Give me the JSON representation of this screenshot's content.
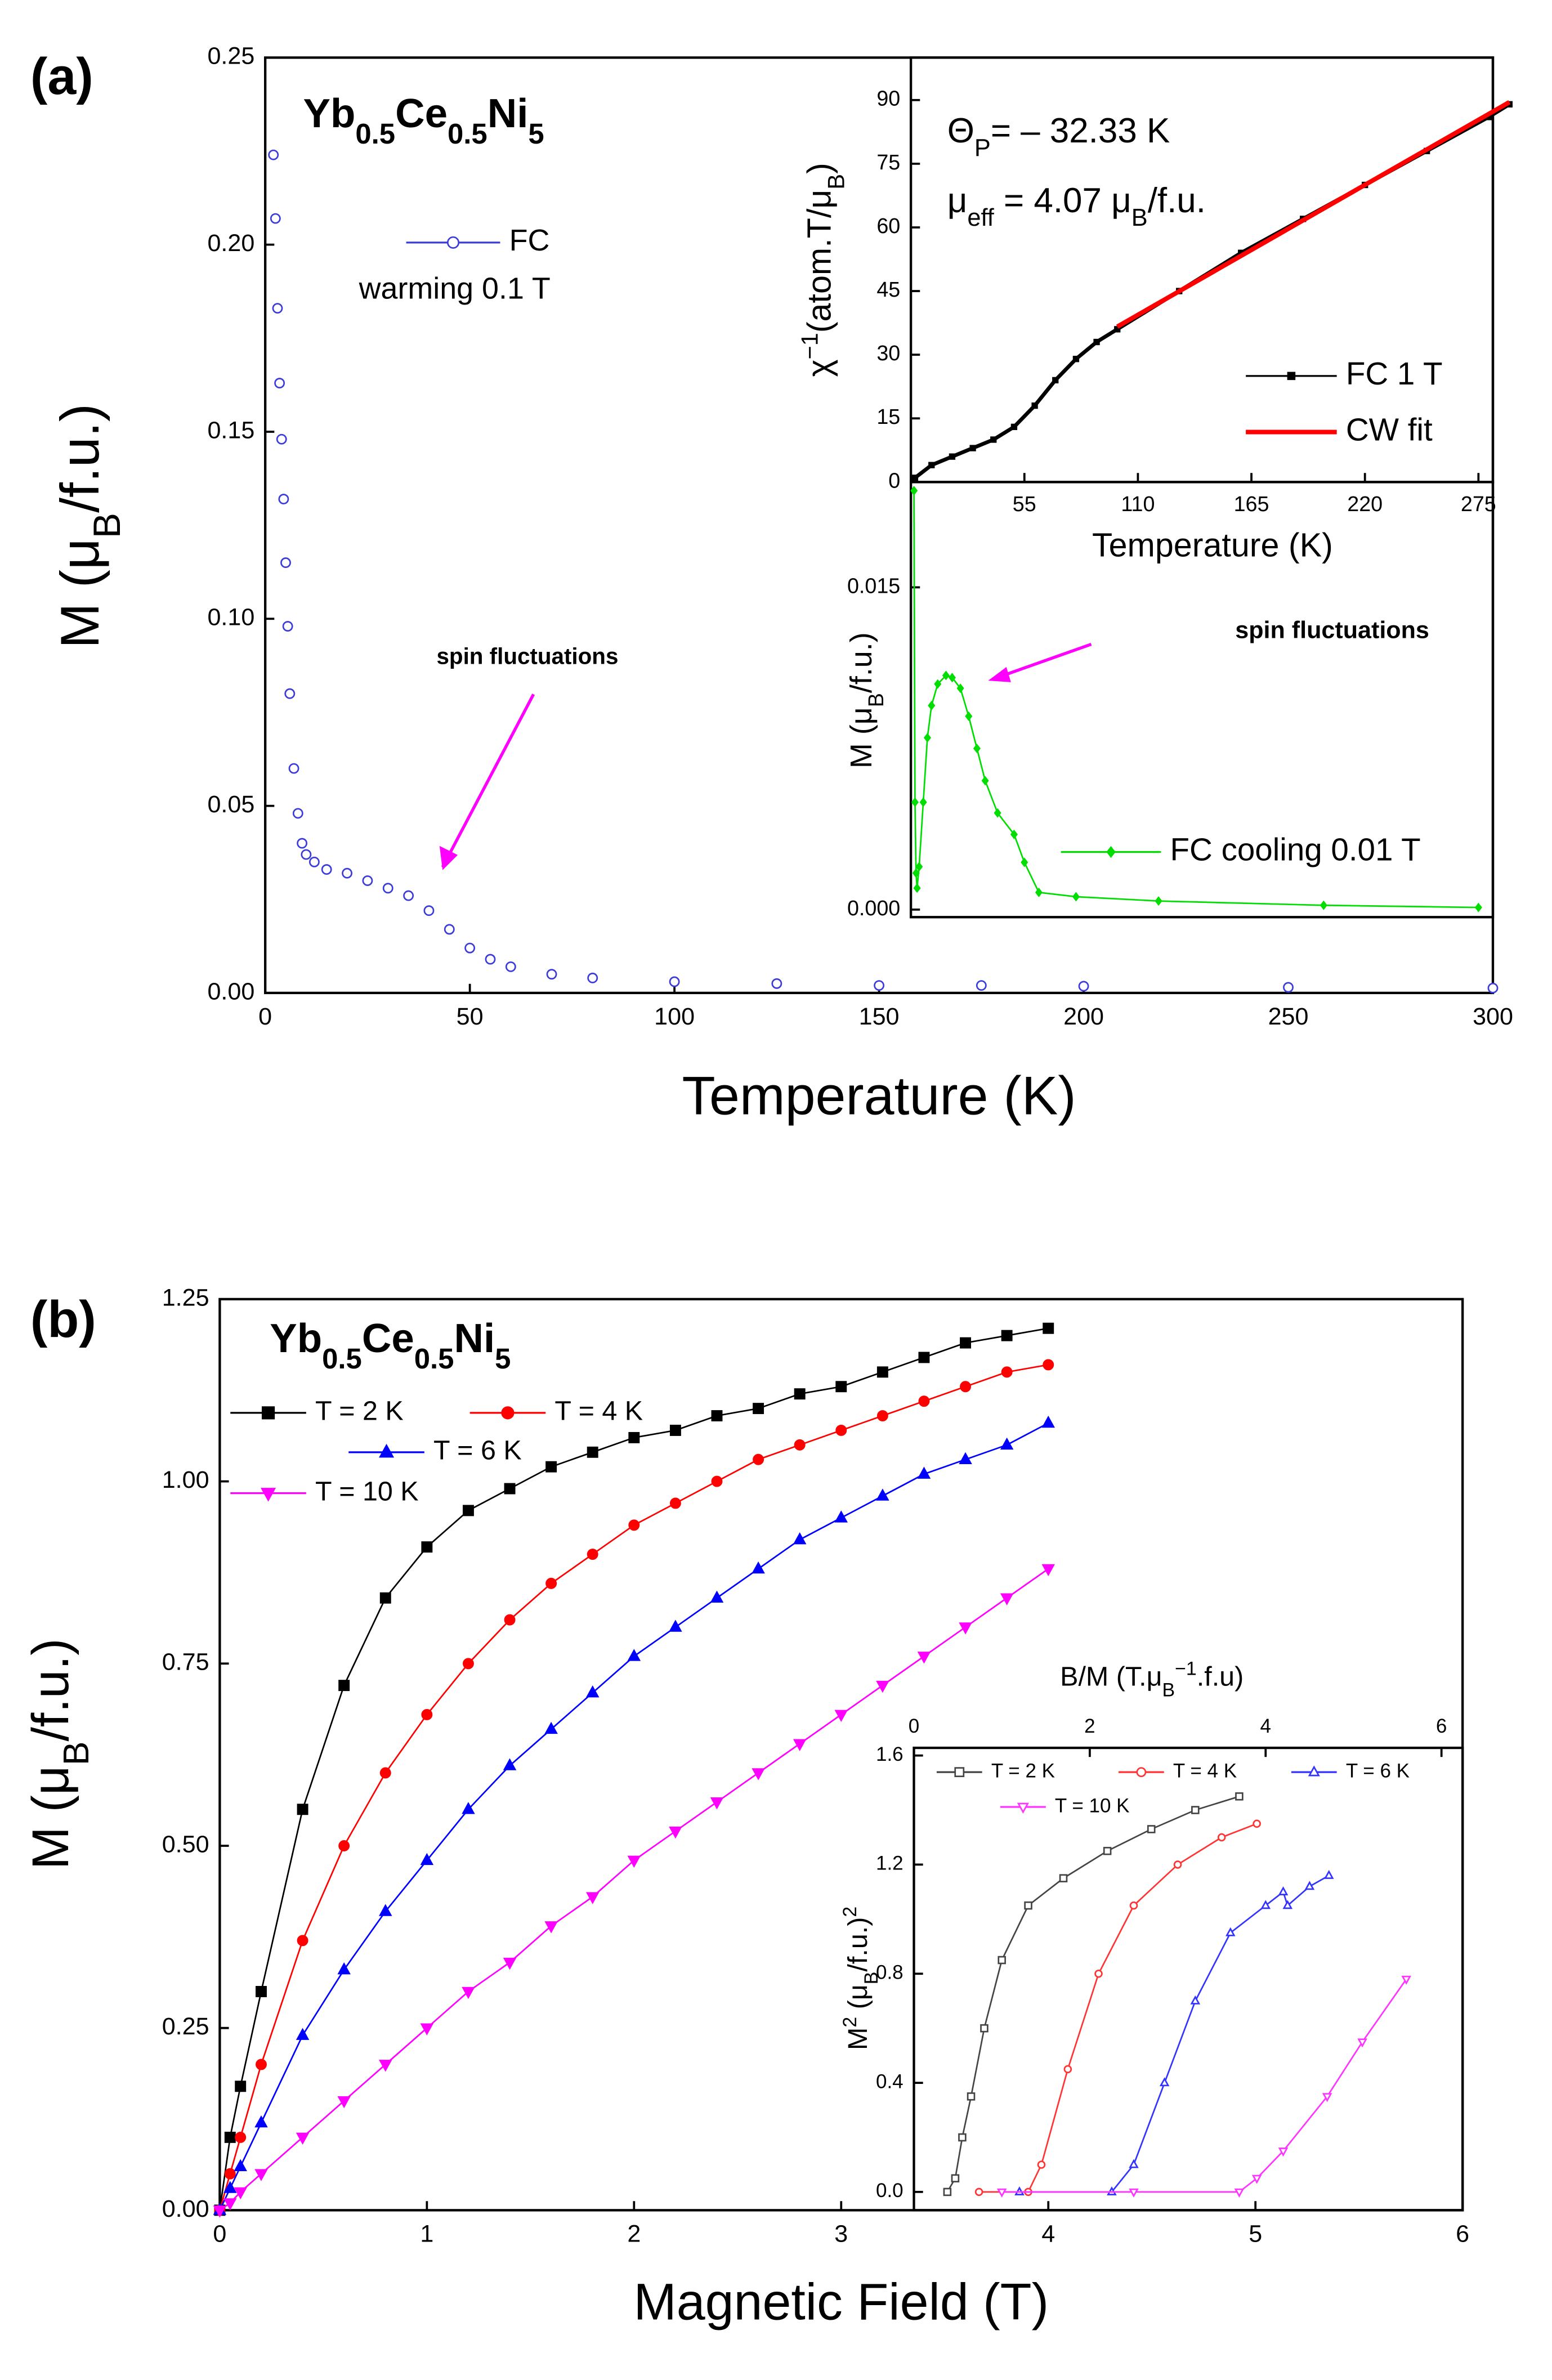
{
  "chart_data": [
    {
      "type": "scatter",
      "panel": "(a)",
      "title": [
        {
          "text": "Yb"
        },
        {
          "text": "0.5",
          "sub": true
        },
        {
          "text": "Ce"
        },
        {
          "text": "0.5",
          "sub": true
        },
        {
          "text": "Ni"
        },
        {
          "text": "5",
          "sub": true
        }
      ],
      "xlabel": [
        {
          "text": "Temperature (K)"
        }
      ],
      "ylabel": [
        {
          "text": "M (μ"
        },
        {
          "text": "B",
          "sub": true
        },
        {
          "text": "/f.u.)"
        }
      ],
      "xlim": [
        0,
        300
      ],
      "xticks": [
        0,
        50,
        100,
        150,
        200,
        250,
        300
      ],
      "ylim": [
        0,
        0.25
      ],
      "yticks": [
        {
          "value": 0,
          "label": "0.00"
        },
        {
          "value": 0.05,
          "label": "0.05"
        },
        {
          "value": 0.1,
          "label": "0.10"
        },
        {
          "value": 0.15,
          "label": "0.15"
        },
        {
          "value": 0.2,
          "label": "0.20"
        },
        {
          "value": 0.25,
          "label": "0.25"
        }
      ],
      "annotations": [
        "warming 0.1 T",
        "spin fluctuations"
      ],
      "x": [
        2,
        2.5,
        3,
        3.5,
        4,
        4.5,
        5,
        5.5,
        6,
        7,
        8,
        9,
        10,
        12,
        15,
        20,
        25,
        30,
        35,
        40,
        45,
        50,
        55,
        60,
        70,
        80,
        100,
        125,
        150,
        175,
        200,
        250,
        300
      ],
      "series": [
        {
          "name": "FC",
          "color": "#3b3bdc",
          "marker": "circle",
          "filled": false,
          "values": [
            0.224,
            0.207,
            0.183,
            0.163,
            0.148,
            0.132,
            0.115,
            0.098,
            0.08,
            0.06,
            0.048,
            0.04,
            0.037,
            0.035,
            0.033,
            0.032,
            0.03,
            0.028,
            0.026,
            0.022,
            0.017,
            0.012,
            0.009,
            0.007,
            0.005,
            0.004,
            0.003,
            0.0025,
            0.002,
            0.002,
            0.0018,
            0.0015,
            0.0013
          ]
        }
      ]
    },
    {
      "type": "line",
      "title": [
        {
          "text": "Θ"
        },
        {
          "text": "P",
          "sub": true
        },
        {
          "text": "= – 32.33 K"
        }
      ],
      "subtitle": [
        {
          "text": "μ"
        },
        {
          "text": "eff",
          "sub": true
        },
        {
          "text": " = 4.07 μ"
        },
        {
          "text": "B",
          "sub": true
        },
        {
          "text": "/f.u."
        }
      ],
      "xlabel": [
        {
          "text": "Temperature (K)"
        }
      ],
      "ylabel": [
        {
          "text": "χ"
        },
        {
          "text": "−1",
          "sup": true
        },
        {
          "text": "(atom.T/μ"
        },
        {
          "text": "B",
          "sub": true
        },
        {
          "text": ")"
        }
      ],
      "xlim": [
        0,
        282
      ],
      "xticks": [
        55,
        110,
        165,
        220,
        275
      ],
      "ylim": [
        0,
        100
      ],
      "yticks": [
        0,
        15,
        30,
        45,
        60,
        75,
        90
      ],
      "series": [
        {
          "name": "FC 1 T",
          "color": "#000000",
          "marker": "square",
          "filled": true,
          "x": [
            2,
            10,
            20,
            30,
            40,
            50,
            60,
            70,
            80,
            90,
            100,
            130,
            160,
            190,
            220,
            250,
            280,
            290
          ],
          "values": [
            1,
            4,
            6,
            8,
            10,
            13,
            18,
            24,
            29,
            33,
            36,
            45,
            54,
            62,
            70,
            78,
            86,
            89
          ]
        },
        {
          "name": "CW fit",
          "color": "#ff0000",
          "x": [
            100,
            290
          ],
          "values": [
            36.6,
            89.5
          ]
        }
      ]
    },
    {
      "type": "line",
      "ylabel": [
        {
          "text": "M (μ"
        },
        {
          "text": "B",
          "sub": true
        },
        {
          "text": "/f.u.)"
        }
      ],
      "xlim": [
        0,
        282
      ],
      "ylim": [
        -0.00035,
        0.0199
      ],
      "yticks": [
        {
          "value": 0,
          "label": "0.000"
        },
        {
          "value": 0.015,
          "label": "0.015"
        }
      ],
      "annotations": [
        "spin fluctuations"
      ],
      "series": [
        {
          "name": "FC cooling 0.01 T",
          "color": "#00dd00",
          "marker": "diamond",
          "filled": true,
          "x": [
            1.5,
            2,
            2.5,
            3,
            4,
            6,
            8,
            10,
            13,
            17,
            20,
            24,
            28,
            32,
            36,
            42,
            50,
            55,
            62,
            80,
            120,
            200,
            275
          ],
          "values": [
            0.0195,
            0.005,
            0.0017,
            0.001,
            0.002,
            0.005,
            0.008,
            0.0095,
            0.0105,
            0.0109,
            0.0108,
            0.0103,
            0.009,
            0.0075,
            0.006,
            0.0045,
            0.0035,
            0.0022,
            0.0008,
            0.0006,
            0.0004,
            0.0002,
            0.0001
          ]
        }
      ]
    },
    {
      "type": "line",
      "panel": "(b)",
      "title": [
        {
          "text": "Yb"
        },
        {
          "text": "0.5",
          "sub": true
        },
        {
          "text": "Ce"
        },
        {
          "text": "0.5",
          "sub": true
        },
        {
          "text": "Ni"
        },
        {
          "text": "5",
          "sub": true
        }
      ],
      "xlabel": [
        {
          "text": "Magnetic Field (T)"
        }
      ],
      "ylabel": [
        {
          "text": "M (μ"
        },
        {
          "text": "B",
          "sub": true
        },
        {
          "text": "/f.u.)"
        }
      ],
      "xlim": [
        0,
        6
      ],
      "xticks": [
        0,
        1,
        2,
        3,
        4,
        5,
        6
      ],
      "ylim": [
        0,
        1.25
      ],
      "yticks": [
        {
          "value": 0,
          "label": "0.00"
        },
        {
          "value": 0.25,
          "label": "0.25"
        },
        {
          "value": 0.5,
          "label": "0.50"
        },
        {
          "value": 0.75,
          "label": "0.75"
        },
        {
          "value": 1,
          "label": "1.00"
        },
        {
          "value": 1.25,
          "label": "1.25"
        }
      ],
      "x": [
        0,
        0.05,
        0.1,
        0.2,
        0.4,
        0.6,
        0.8,
        1.0,
        1.2,
        1.4,
        1.6,
        1.8,
        2.0,
        2.2,
        2.4,
        2.6,
        2.8,
        3.0,
        3.2,
        3.4,
        3.6,
        3.8,
        4.0
      ],
      "series": [
        {
          "name": "T = 2 K",
          "color": "#000000",
          "marker": "square",
          "filled": true,
          "values": [
            0,
            0.1,
            0.17,
            0.3,
            0.55,
            0.72,
            0.84,
            0.91,
            0.96,
            0.99,
            1.02,
            1.04,
            1.06,
            1.07,
            1.09,
            1.1,
            1.12,
            1.13,
            1.15,
            1.17,
            1.19,
            1.2,
            1.21
          ]
        },
        {
          "name": "T = 4 K",
          "color": "#ff0000",
          "marker": "circle",
          "filled": true,
          "values": [
            0,
            0.05,
            0.1,
            0.2,
            0.37,
            0.5,
            0.6,
            0.68,
            0.75,
            0.81,
            0.86,
            0.9,
            0.94,
            0.97,
            1.0,
            1.03,
            1.05,
            1.07,
            1.09,
            1.11,
            1.13,
            1.15,
            1.16
          ]
        },
        {
          "name": "T = 6 K",
          "color": "#0000ff",
          "marker": "triangle-up",
          "filled": true,
          "values": [
            0,
            0.03,
            0.06,
            0.12,
            0.24,
            0.33,
            0.41,
            0.48,
            0.55,
            0.61,
            0.66,
            0.71,
            0.76,
            0.8,
            0.84,
            0.88,
            0.92,
            0.95,
            0.98,
            1.01,
            1.03,
            1.05,
            1.08
          ]
        },
        {
          "name": "T = 10 K",
          "color": "#ff00ff",
          "marker": "triangle-down",
          "filled": true,
          "values": [
            0,
            0.01,
            0.025,
            0.05,
            0.1,
            0.15,
            0.2,
            0.25,
            0.3,
            0.34,
            0.39,
            0.43,
            0.48,
            0.52,
            0.56,
            0.6,
            0.64,
            0.68,
            0.72,
            0.76,
            0.8,
            0.84,
            0.88
          ]
        }
      ]
    },
    {
      "type": "line",
      "xlabel": [
        {
          "text": "B/M (T.μ"
        },
        {
          "text": "B",
          "sub": true
        },
        {
          "text": "−1",
          "sup": true
        },
        {
          "text": ".f.u)"
        }
      ],
      "ylabel": [
        {
          "text": "M"
        },
        {
          "text": "2",
          "sup": true
        },
        {
          "text": " (μ"
        },
        {
          "text": "B",
          "sub": true
        },
        {
          "text": "/f.u.)"
        },
        {
          "text": "2",
          "sup": true
        }
      ],
      "xlim": [
        0,
        6.24
      ],
      "xticks": [
        0,
        2,
        4,
        6
      ],
      "ylim": [
        -0.067,
        1.628
      ],
      "yticks": [
        {
          "value": 0,
          "label": "0.0"
        },
        {
          "value": 0.4,
          "label": "0.4"
        },
        {
          "value": 0.8,
          "label": "0.8"
        },
        {
          "value": 1.2,
          "label": "1.2"
        },
        {
          "value": 1.6,
          "label": "1.6"
        }
      ],
      "series": [
        {
          "name": "T = 2 K",
          "color": "#444444",
          "marker": "square",
          "filled": false,
          "x": [
            0.38,
            0.47,
            0.55,
            0.65,
            0.8,
            1.0,
            1.3,
            1.7,
            2.2,
            2.7,
            3.2,
            3.7
          ],
          "values": [
            0,
            0.05,
            0.2,
            0.35,
            0.6,
            0.85,
            1.05,
            1.15,
            1.25,
            1.33,
            1.4,
            1.45
          ]
        },
        {
          "name": "T = 4 K",
          "color": "#ff3333",
          "marker": "circle",
          "filled": false,
          "x": [
            0.74,
            1.3,
            1.45,
            1.75,
            2.1,
            2.5,
            3.0,
            3.5,
            3.9
          ],
          "values": [
            0,
            0,
            0.1,
            0.45,
            0.8,
            1.05,
            1.2,
            1.3,
            1.35
          ]
        },
        {
          "name": "T = 6 K",
          "color": "#3333ff",
          "marker": "triangle-up",
          "filled": false,
          "x": [
            1.2,
            2.25,
            2.5,
            2.85,
            3.2,
            3.6,
            4.0,
            4.2,
            4.25,
            4.5,
            4.72
          ],
          "values": [
            0,
            0,
            0.1,
            0.4,
            0.7,
            0.95,
            1.05,
            1.1,
            1.05,
            1.12,
            1.16
          ]
        },
        {
          "name": "T = 10 K",
          "color": "#ff33ff",
          "marker": "triangle-down",
          "filled": false,
          "x": [
            1.0,
            2.5,
            3.7,
            3.9,
            4.2,
            4.7,
            5.1,
            5.6
          ],
          "values": [
            0,
            0,
            0,
            0.05,
            0.15,
            0.35,
            0.55,
            0.78
          ]
        }
      ]
    }
  ]
}
